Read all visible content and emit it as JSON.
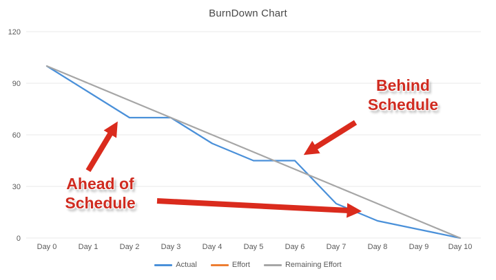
{
  "chart_data": {
    "type": "line",
    "title": "BurnDown Chart",
    "categories": [
      "Day 0",
      "Day 1",
      "Day 2",
      "Day 3",
      "Day 4",
      "Day 5",
      "Day 6",
      "Day 7",
      "Day 8",
      "Day 9",
      "Day 10"
    ],
    "series": [
      {
        "name": "Actual",
        "color": "#4a90d9",
        "values": [
          100,
          85,
          70,
          70,
          55,
          45,
          45,
          20,
          10,
          5,
          0
        ]
      },
      {
        "name": "Effort",
        "color": "#ed7d31",
        "values": []
      },
      {
        "name": "Remaining Effort",
        "color": "#a6a6a6",
        "values": [
          100,
          90,
          80,
          70,
          60,
          50,
          40,
          30,
          20,
          10,
          0
        ]
      }
    ],
    "y_ticks": [
      0,
      30,
      60,
      90,
      120
    ],
    "ylim": [
      0,
      120
    ],
    "xlabel": "",
    "ylabel": "",
    "grid": "horizontal",
    "legend_position": "bottom"
  },
  "annotations": {
    "color": "#cf2b20",
    "arrow_color": "#da2b1d",
    "ahead": {
      "lines": [
        "Ahead of",
        "Schedule"
      ]
    },
    "behind": {
      "lines": [
        "Behind",
        "Schedule"
      ]
    }
  }
}
